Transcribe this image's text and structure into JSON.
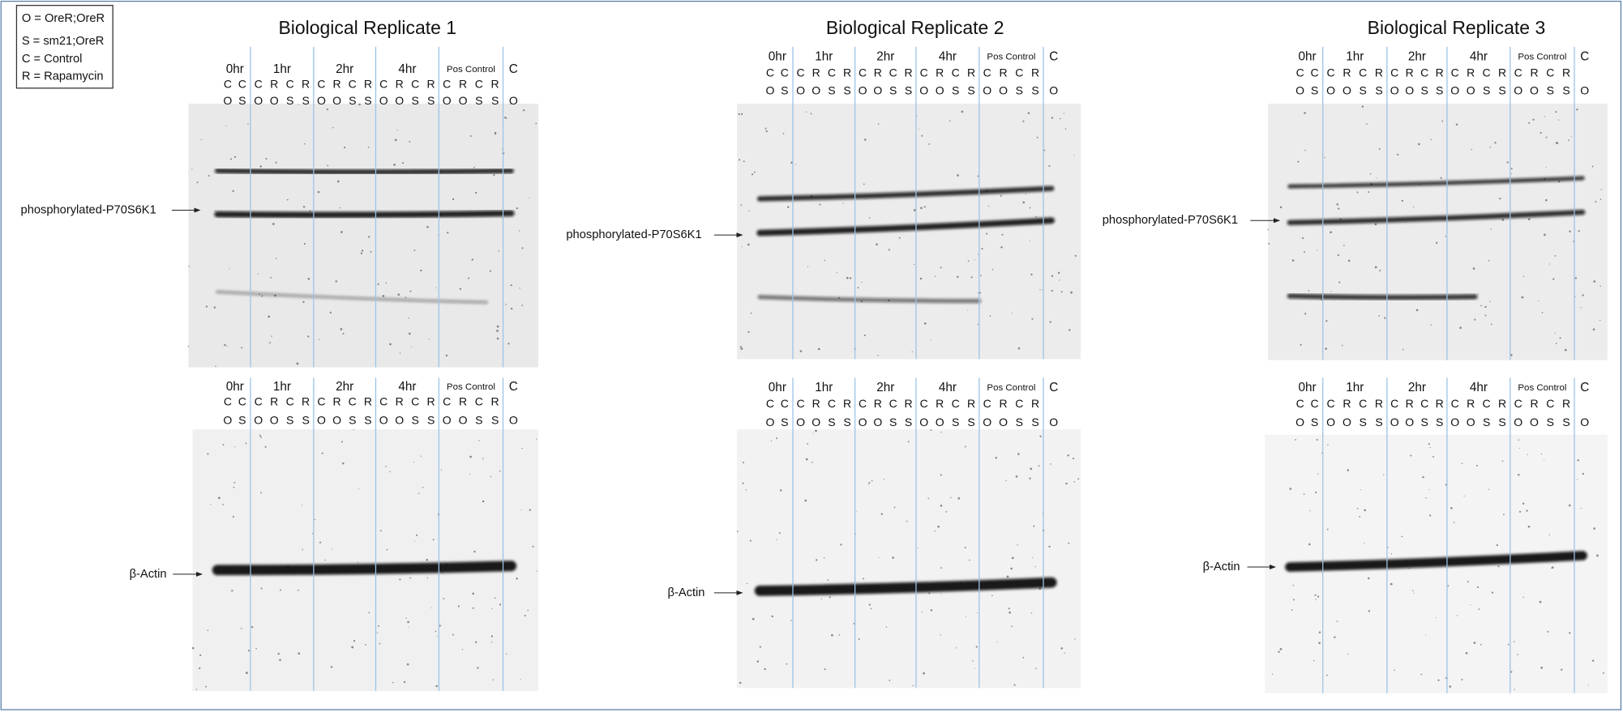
{
  "legend": [
    "O = OreR;OreR",
    "S = sm21;OreR",
    "C = Control",
    "R = Rapamycin"
  ],
  "replicates": [
    {
      "title": "Biological Replicate 1",
      "blots": [
        {
          "band_label": "phosphorylated-P70S6K1",
          "groups": [
            {
              "label": "0hr",
              "treatment": [
                "C",
                "C"
              ],
              "strain": [
                "O",
                "S"
              ]
            },
            {
              "label": "1hr",
              "treatment": [
                "C",
                "R",
                "C",
                "R"
              ],
              "strain": [
                "O",
                "O",
                "S",
                "S"
              ]
            },
            {
              "label": "2hr",
              "treatment": [
                "C",
                "R",
                "C",
                "R"
              ],
              "strain": [
                "O",
                "O",
                "S",
                "S"
              ]
            },
            {
              "label": "4hr",
              "treatment": [
                "C",
                "R",
                "C",
                "R"
              ],
              "strain": [
                "O",
                "O",
                "S",
                "S"
              ]
            },
            {
              "label": "Pos Control",
              "treatment": [
                "C",
                "R",
                "C",
                "R"
              ],
              "strain": [
                "O",
                "O",
                "S",
                "S"
              ]
            },
            {
              "label": "C",
              "treatment": [],
              "strain": [
                "O"
              ]
            }
          ]
        },
        {
          "band_label": "β-Actin",
          "groups": [
            {
              "label": "0hr",
              "treatment": [
                "C",
                "C"
              ],
              "strain": [
                "O",
                "S"
              ]
            },
            {
              "label": "1hr",
              "treatment": [
                "C",
                "R",
                "C",
                "R"
              ],
              "strain": [
                "O",
                "O",
                "S",
                "S"
              ]
            },
            {
              "label": "2hr",
              "treatment": [
                "C",
                "R",
                "C",
                "R"
              ],
              "strain": [
                "O",
                "O",
                "S",
                "S"
              ]
            },
            {
              "label": "4hr",
              "treatment": [
                "C",
                "R",
                "C",
                "R"
              ],
              "strain": [
                "O",
                "O",
                "S",
                "S"
              ]
            },
            {
              "label": "Pos Control",
              "treatment": [
                "C",
                "R",
                "C",
                "R"
              ],
              "strain": [
                "O",
                "O",
                "S",
                "S"
              ]
            },
            {
              "label": "C",
              "treatment": [],
              "strain": [
                "O"
              ]
            }
          ]
        }
      ]
    },
    {
      "title": "Biological Replicate 2",
      "blots": [
        {
          "band_label": "phosphorylated-P70S6K1",
          "groups": [
            {
              "label": "0hr",
              "treatment": [
                "C",
                "C"
              ],
              "strain": [
                "O",
                "S"
              ]
            },
            {
              "label": "1hr",
              "treatment": [
                "C",
                "R",
                "C",
                "R"
              ],
              "strain": [
                "O",
                "O",
                "S",
                "S"
              ]
            },
            {
              "label": "2hr",
              "treatment": [
                "C",
                "R",
                "C",
                "R"
              ],
              "strain": [
                "O",
                "O",
                "S",
                "S"
              ]
            },
            {
              "label": "4hr",
              "treatment": [
                "C",
                "R",
                "C",
                "R"
              ],
              "strain": [
                "O",
                "O",
                "S",
                "S"
              ]
            },
            {
              "label": "Pos Control",
              "treatment": [
                "C",
                "R",
                "C",
                "R"
              ],
              "strain": [
                "O",
                "O",
                "S",
                "S"
              ]
            },
            {
              "label": "C",
              "treatment": [],
              "strain": [
                "O"
              ]
            }
          ]
        },
        {
          "band_label": "β-Actin",
          "groups": [
            {
              "label": "0hr",
              "treatment": [
                "C",
                "C"
              ],
              "strain": [
                "O",
                "S"
              ]
            },
            {
              "label": "1hr",
              "treatment": [
                "C",
                "R",
                "C",
                "R"
              ],
              "strain": [
                "O",
                "O",
                "S",
                "S"
              ]
            },
            {
              "label": "2hr",
              "treatment": [
                "C",
                "R",
                "C",
                "R"
              ],
              "strain": [
                "O",
                "O",
                "S",
                "S"
              ]
            },
            {
              "label": "4hr",
              "treatment": [
                "C",
                "R",
                "C",
                "R"
              ],
              "strain": [
                "O",
                "O",
                "S",
                "S"
              ]
            },
            {
              "label": "Pos Control",
              "treatment": [
                "C",
                "R",
                "C",
                "R"
              ],
              "strain": [
                "O",
                "O",
                "S",
                "S"
              ]
            },
            {
              "label": "C",
              "treatment": [],
              "strain": [
                "O"
              ]
            }
          ]
        }
      ]
    },
    {
      "title": "Biological Replicate 3",
      "blots": [
        {
          "band_label": "phosphorylated-P70S6K1",
          "groups": [
            {
              "label": "0hr",
              "treatment": [
                "C",
                "C"
              ],
              "strain": [
                "O",
                "S"
              ]
            },
            {
              "label": "1hr",
              "treatment": [
                "C",
                "R",
                "C",
                "R"
              ],
              "strain": [
                "O",
                "O",
                "S",
                "S"
              ]
            },
            {
              "label": "2hr",
              "treatment": [
                "C",
                "R",
                "C",
                "R"
              ],
              "strain": [
                "O",
                "O",
                "S",
                "S"
              ]
            },
            {
              "label": "4hr",
              "treatment": [
                "C",
                "R",
                "C",
                "R"
              ],
              "strain": [
                "O",
                "O",
                "S",
                "S"
              ]
            },
            {
              "label": "Pos Control",
              "treatment": [
                "C",
                "R",
                "C",
                "R"
              ],
              "strain": [
                "O",
                "O",
                "S",
                "S"
              ]
            },
            {
              "label": "C",
              "treatment": [],
              "strain": [
                "O"
              ]
            }
          ]
        },
        {
          "band_label": "β-Actin",
          "groups": [
            {
              "label": "0hr",
              "treatment": [
                "C",
                "C"
              ],
              "strain": [
                "O",
                "S"
              ]
            },
            {
              "label": "1hr",
              "treatment": [
                "C",
                "R",
                "C",
                "R"
              ],
              "strain": [
                "O",
                "O",
                "S",
                "S"
              ]
            },
            {
              "label": "2hr",
              "treatment": [
                "C",
                "R",
                "C",
                "R"
              ],
              "strain": [
                "O",
                "O",
                "S",
                "S"
              ]
            },
            {
              "label": "4hr",
              "treatment": [
                "C",
                "R",
                "C",
                "R"
              ],
              "strain": [
                "O",
                "O",
                "S",
                "S"
              ]
            },
            {
              "label": "Pos Control",
              "treatment": [
                "C",
                "R",
                "C",
                "R"
              ],
              "strain": [
                "O",
                "O",
                "S",
                "S"
              ]
            },
            {
              "label": "C",
              "treatment": [],
              "strain": [
                "O"
              ]
            }
          ]
        }
      ]
    }
  ]
}
